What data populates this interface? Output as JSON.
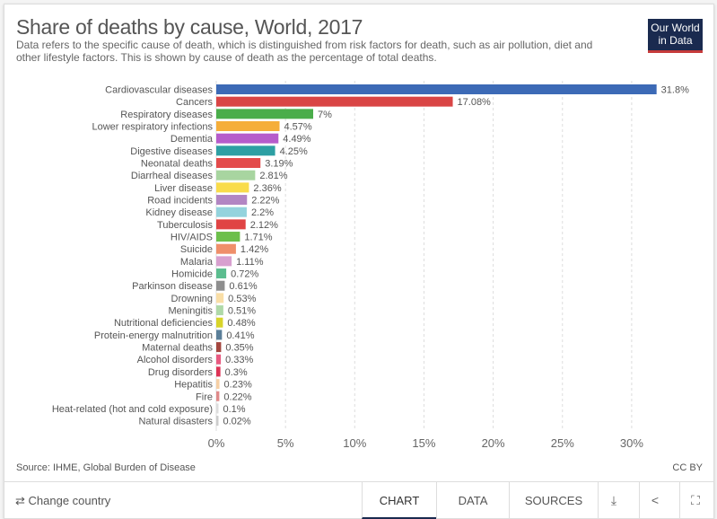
{
  "header": {
    "title": "Share of deaths by cause, World, 2017",
    "subtitle": "Data refers to the specific cause of death, which is distinguished from risk factors for death, such as air pollution, diet and other lifestyle factors. This is shown by cause of death as the percentage of total deaths.",
    "logo": "Our World in Data"
  },
  "chart_data": {
    "type": "bar",
    "orientation": "horizontal",
    "title": "Share of deaths by cause, World, 2017",
    "xlim": [
      0,
      32
    ],
    "grid": true,
    "xticks": [
      "0%",
      "5%",
      "10%",
      "15%",
      "20%",
      "25%",
      "30%"
    ],
    "categories": [
      "Cardiovascular diseases",
      "Cancers",
      "Respiratory diseases",
      "Lower respiratory infections",
      "Dementia",
      "Digestive diseases",
      "Neonatal deaths",
      "Diarrheal diseases",
      "Liver disease",
      "Road incidents",
      "Kidney disease",
      "Tuberculosis",
      "HIV/AIDS",
      "Suicide",
      "Malaria",
      "Homicide",
      "Parkinson disease",
      "Drowning",
      "Meningitis",
      "Nutritional deficiencies",
      "Protein-energy malnutrition",
      "Maternal deaths",
      "Alcohol disorders",
      "Drug disorders",
      "Hepatitis",
      "Fire",
      "Heat-related (hot and cold exposure)",
      "Natural disasters"
    ],
    "values": [
      31.8,
      17.08,
      7,
      4.57,
      4.49,
      4.25,
      3.19,
      2.81,
      2.36,
      2.22,
      2.2,
      2.12,
      1.71,
      1.42,
      1.11,
      0.72,
      0.61,
      0.53,
      0.51,
      0.48,
      0.41,
      0.35,
      0.33,
      0.3,
      0.23,
      0.22,
      0.1,
      0.02
    ],
    "colors": [
      "#3c6ab6",
      "#d94545",
      "#4aad4a",
      "#f5ae3a",
      "#b65ccb",
      "#2d9fa3",
      "#e34b4b",
      "#a8d5a0",
      "#f9dc4a",
      "#b286c3",
      "#94d3dd",
      "#e04444",
      "#6cbf4b",
      "#ef8f6a",
      "#d8a0cf",
      "#5cbd8f",
      "#8e8e8e",
      "#f9dea6",
      "#afd9a8",
      "#d8d42a",
      "#5b7f99",
      "#a3463e",
      "#e85a80",
      "#dd3355",
      "#f6cfa4",
      "#df8a8a",
      "#dddddd",
      "#cccccc"
    ]
  },
  "footer": {
    "source": "Source: IHME, Global Burden of Disease",
    "license": "CC BY",
    "change_country": "⇄ Change country",
    "tabs": [
      "CHART",
      "DATA",
      "SOURCES"
    ],
    "icons": [
      "download-icon",
      "share-icon",
      "fullscreen-icon"
    ]
  }
}
